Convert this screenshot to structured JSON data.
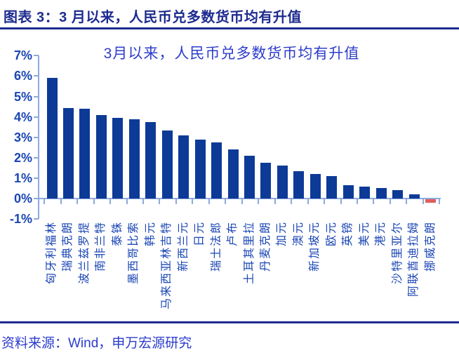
{
  "header": {
    "title": "图表 3：3 月以来，人民币兑多数货币均有升值"
  },
  "footer": {
    "source": "资料来源：Wind，申万宏源研究"
  },
  "colors": {
    "header_navy": "#1E2B8F",
    "title_blue": "#2C3CCB",
    "axis_label_blue": "#1A46B4",
    "bar_blue": "#0D3A97",
    "bar_negative_red": "#E05E5E",
    "axis_line_blue": "#8EA9DC"
  },
  "chart_data": {
    "type": "bar",
    "title": "3月以来，人民币兑多数货币均有升值",
    "unit": "%",
    "grid": false,
    "legend": "none",
    "ylim": [
      -1,
      7
    ],
    "yticks": [
      7,
      6,
      5,
      4,
      3,
      2,
      1,
      0,
      -1
    ],
    "ytick_labels": [
      "7%",
      "6%",
      "5%",
      "4%",
      "3%",
      "2%",
      "1%",
      "0%",
      "-1%"
    ],
    "categories": [
      "匈牙利福林",
      "瑞典克朗",
      "波兰兹罗提",
      "南非兰特",
      "泰铢",
      "墨西哥比索",
      "韩元",
      "马来西亚林吉特",
      "新西兰元",
      "日元",
      "瑞士法郎",
      "卢布",
      "土耳其里拉",
      "丹麦克朗",
      "加元",
      "澳元",
      "新加坡元",
      "欧元",
      "英镑",
      "美元",
      "港元",
      "沙特里亚尔",
      "阿联酋迪拉姆",
      "挪威克朗"
    ],
    "values": [
      5.9,
      4.45,
      4.4,
      4.1,
      3.95,
      3.9,
      3.75,
      3.35,
      3.1,
      2.9,
      2.75,
      2.4,
      2.1,
      1.75,
      1.6,
      1.35,
      1.2,
      1.1,
      0.65,
      0.6,
      0.5,
      0.4,
      0.2,
      -0.2
    ]
  }
}
